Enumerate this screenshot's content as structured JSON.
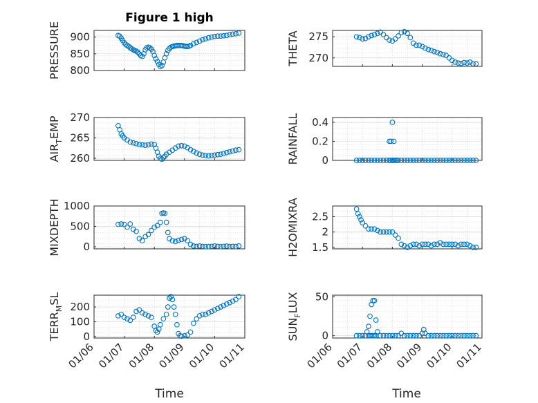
{
  "figure": {
    "title": "Figure 1 high",
    "xlabel": "Time"
  },
  "style": {
    "marker_color": "#0072BD",
    "axis_color": "#262626",
    "grid_color": "#c8c8c8",
    "marker": "open-circle",
    "grid": true,
    "minor_grid": true
  },
  "chart_data": [
    {
      "type": "scatter",
      "ylabel": "PRESSURE",
      "yticks": [
        "800",
        "850",
        "900"
      ],
      "yticks_values": [
        800,
        850,
        900
      ],
      "ylim": [
        800,
        920
      ],
      "xticks": [],
      "x": [
        0.8,
        0.85,
        0.9,
        0.95,
        1.0,
        1.05,
        1.1,
        1.15,
        1.2,
        1.25,
        1.3,
        1.35,
        1.4,
        1.45,
        1.5,
        1.55,
        1.6,
        1.65,
        1.7,
        1.75,
        1.8,
        1.85,
        1.9,
        1.95,
        2.0,
        2.05,
        2.1,
        2.15,
        2.2,
        2.25,
        2.3,
        2.35,
        2.4,
        2.45,
        2.5,
        2.55,
        2.6,
        2.65,
        2.7,
        2.75,
        2.8,
        2.85,
        2.9,
        2.95,
        3.0,
        3.05,
        3.1,
        3.15,
        3.2,
        3.3,
        3.4,
        3.5,
        3.6,
        3.7,
        3.8,
        3.9,
        4.0,
        4.1,
        4.2,
        4.3,
        4.4,
        4.5,
        4.6,
        4.7,
        4.8
      ],
      "y": [
        905,
        903,
        897,
        890,
        883,
        878,
        875,
        872,
        868,
        865,
        862,
        860,
        858,
        855,
        850,
        845,
        842,
        850,
        862,
        868,
        870,
        868,
        864,
        857,
        845,
        835,
        827,
        818,
        812,
        815,
        825,
        838,
        850,
        860,
        866,
        870,
        872,
        873,
        874,
        875,
        875,
        875,
        875,
        874,
        873,
        872,
        872,
        873,
        875,
        880,
        884,
        888,
        892,
        895,
        898,
        900,
        902,
        903,
        903,
        904,
        905,
        907,
        909,
        910,
        912
      ],
      "x_domain": [
        0,
        5
      ]
    },
    {
      "type": "scatter",
      "ylabel": "THETA",
      "yticks": [
        "270",
        "275"
      ],
      "yticks_values": [
        270,
        275
      ],
      "ylim": [
        268,
        276.5
      ],
      "x_domain": [
        0,
        5
      ],
      "x": [
        0.8,
        0.9,
        1.0,
        1.1,
        1.2,
        1.3,
        1.4,
        1.5,
        1.6,
        1.7,
        1.8,
        1.9,
        2.0,
        2.1,
        2.2,
        2.3,
        2.4,
        2.5,
        2.6,
        2.7,
        2.8,
        2.9,
        3.0,
        3.1,
        3.2,
        3.3,
        3.4,
        3.5,
        3.6,
        3.7,
        3.8,
        3.9,
        4.0,
        4.1,
        4.2,
        4.3,
        4.4,
        4.5,
        4.6,
        4.7,
        4.8
      ],
      "y": [
        275,
        274.8,
        274.5,
        274.6,
        275,
        275.3,
        275.5,
        275.8,
        276.1,
        275.5,
        274.8,
        274.2,
        274,
        274.5,
        275.2,
        276,
        276.2,
        275.8,
        274.8,
        273.5,
        273,
        273,
        272.7,
        272.3,
        272,
        271.8,
        271.5,
        271.3,
        271,
        270.8,
        270.6,
        270,
        269.4,
        269,
        268.8,
        268.7,
        268.9,
        268.8,
        269,
        268.6,
        268.6
      ]
    },
    {
      "type": "scatter",
      "ylabel": "AIR_TEMP",
      "ylabel_main": "AIR",
      "ylabel_sub": "T",
      "ylabel_tail": "EMP",
      "yticks": [
        "260",
        "265",
        "270"
      ],
      "yticks_values": [
        260,
        265,
        270
      ],
      "ylim": [
        259.5,
        270
      ],
      "x_domain": [
        0,
        5
      ],
      "x": [
        0.8,
        0.85,
        0.9,
        0.95,
        1.0,
        1.1,
        1.2,
        1.3,
        1.4,
        1.5,
        1.6,
        1.7,
        1.8,
        1.9,
        2.0,
        2.05,
        2.1,
        2.15,
        2.2,
        2.25,
        2.3,
        2.35,
        2.4,
        2.5,
        2.6,
        2.7,
        2.8,
        2.9,
        3.0,
        3.1,
        3.2,
        3.3,
        3.4,
        3.5,
        3.6,
        3.7,
        3.8,
        3.9,
        4.0,
        4.1,
        4.2,
        4.3,
        4.4,
        4.5,
        4.6,
        4.7,
        4.8
      ],
      "y": [
        268,
        267,
        266,
        265.5,
        265,
        264.5,
        264,
        263.8,
        263.6,
        263.4,
        263.3,
        263.2,
        263.3,
        263.5,
        263.4,
        262.5,
        261.5,
        260.5,
        260,
        259.8,
        260.2,
        260.5,
        261,
        261.5,
        262,
        262.5,
        263,
        263.1,
        263,
        262.6,
        262.1,
        261.7,
        261.3,
        261,
        260.8,
        260.7,
        260.6,
        260.7,
        260.8,
        260.9,
        261,
        261.2,
        261.4,
        261.6,
        261.8,
        262,
        262.1
      ]
    },
    {
      "type": "scatter",
      "ylabel": "RAINFALL",
      "yticks": [
        "0",
        "0.2",
        "0.4"
      ],
      "yticks_values": [
        0,
        0.2,
        0.4
      ],
      "ylim": [
        0,
        0.45
      ],
      "x_domain": [
        0,
        5
      ],
      "x": [
        0.8,
        0.9,
        1.0,
        1.1,
        1.2,
        1.3,
        1.4,
        1.5,
        1.6,
        1.7,
        1.8,
        1.9,
        1.95,
        2.0,
        2.05,
        2.1,
        2.15,
        2.2,
        2.3,
        2.4,
        2.5,
        2.6,
        2.7,
        2.8,
        2.9,
        3.0,
        3.1,
        3.2,
        3.3,
        3.4,
        3.5,
        3.6,
        3.7,
        3.8,
        3.9,
        4.0,
        4.1,
        4.2,
        4.3,
        4.4,
        4.5,
        4.6,
        4.7,
        4.8,
        1.9,
        1.95,
        2.0,
        2.05
      ],
      "y": [
        0,
        0,
        0,
        0,
        0,
        0,
        0,
        0,
        0,
        0,
        0,
        0,
        0,
        0,
        0,
        0,
        0,
        0,
        0,
        0,
        0,
        0,
        0,
        0,
        0,
        0,
        0,
        0,
        0,
        0,
        0,
        0,
        0,
        0,
        0,
        0,
        0,
        0,
        0,
        0,
        0,
        0,
        0,
        0,
        0.2,
        0.2,
        0.4,
        0.2
      ]
    },
    {
      "type": "scatter",
      "ylabel": "MIXDEPTH",
      "yticks": [
        "0",
        "500",
        "1000"
      ],
      "yticks_values": [
        0,
        500,
        1000
      ],
      "ylim": [
        -50,
        1000
      ],
      "x_domain": [
        0,
        5
      ],
      "x": [
        0.8,
        0.9,
        1.0,
        1.1,
        1.2,
        1.3,
        1.4,
        1.5,
        1.6,
        1.7,
        1.8,
        1.9,
        2.0,
        2.1,
        2.2,
        2.25,
        2.3,
        2.35,
        2.4,
        2.45,
        2.5,
        2.6,
        2.7,
        2.8,
        2.9,
        3.0,
        3.1,
        3.2,
        3.3,
        3.4,
        3.5,
        3.6,
        3.7,
        3.8,
        3.9,
        4.0,
        4.1,
        4.2,
        4.3,
        4.4,
        4.5,
        4.6,
        4.7,
        4.8
      ],
      "y": [
        550,
        560,
        550,
        480,
        560,
        430,
        380,
        200,
        150,
        250,
        300,
        400,
        480,
        520,
        600,
        820,
        830,
        820,
        600,
        350,
        200,
        150,
        130,
        160,
        180,
        200,
        150,
        60,
        20,
        10,
        20,
        10,
        5,
        5,
        10,
        20,
        10,
        5,
        10,
        15,
        5,
        10,
        5,
        20
      ]
    },
    {
      "type": "scatter",
      "ylabel": "H2OMIXRA",
      "yticks": [
        "1.5",
        "2",
        "2.5"
      ],
      "yticks_values": [
        1.5,
        2,
        2.5
      ],
      "ylim": [
        1.45,
        2.85
      ],
      "x_domain": [
        0,
        5
      ],
      "x": [
        0.8,
        0.85,
        0.9,
        0.95,
        1.0,
        1.1,
        1.2,
        1.3,
        1.4,
        1.5,
        1.6,
        1.7,
        1.8,
        1.9,
        2.0,
        2.1,
        2.2,
        2.3,
        2.4,
        2.5,
        2.6,
        2.7,
        2.8,
        2.9,
        3.0,
        3.1,
        3.2,
        3.3,
        3.4,
        3.5,
        3.6,
        3.7,
        3.8,
        3.9,
        4.0,
        4.1,
        4.2,
        4.3,
        4.4,
        4.5,
        4.6,
        4.7,
        4.8
      ],
      "y": [
        2.75,
        2.6,
        2.5,
        2.4,
        2.3,
        2.2,
        2.1,
        2.1,
        2.1,
        2.05,
        2,
        2,
        2,
        2,
        2,
        1.9,
        1.8,
        1.6,
        1.55,
        1.5,
        1.55,
        1.6,
        1.6,
        1.55,
        1.6,
        1.6,
        1.6,
        1.55,
        1.6,
        1.6,
        1.65,
        1.6,
        1.6,
        1.6,
        1.6,
        1.6,
        1.55,
        1.6,
        1.6,
        1.6,
        1.55,
        1.5,
        1.5
      ]
    },
    {
      "type": "scatter",
      "ylabel": "TERR_MSL",
      "ylabel_main": "TERR",
      "ylabel_sub": "M",
      "ylabel_tail": "SL",
      "yticks": [
        "0",
        "100",
        "200"
      ],
      "yticks_values": [
        0,
        100,
        200
      ],
      "ylim": [
        -10,
        280
      ],
      "x_domain": [
        0,
        5
      ],
      "xticks": [
        "01/06",
        "01/07",
        "01/08",
        "01/09",
        "01/10",
        "01/11"
      ],
      "x": [
        0.8,
        0.9,
        1.0,
        1.1,
        1.2,
        1.3,
        1.4,
        1.5,
        1.6,
        1.7,
        1.8,
        1.9,
        2.0,
        2.05,
        2.1,
        2.15,
        2.2,
        2.3,
        2.4,
        2.45,
        2.5,
        2.55,
        2.6,
        2.65,
        2.7,
        2.75,
        2.8,
        2.85,
        2.9,
        3.0,
        3.1,
        3.2,
        3.3,
        3.4,
        3.5,
        3.6,
        3.7,
        3.8,
        3.9,
        4.0,
        4.1,
        4.2,
        4.3,
        4.4,
        4.5,
        4.6,
        4.7,
        4.8
      ],
      "y": [
        140,
        150,
        130,
        120,
        110,
        130,
        170,
        180,
        160,
        150,
        140,
        130,
        70,
        40,
        30,
        50,
        80,
        120,
        150,
        200,
        260,
        270,
        250,
        200,
        150,
        80,
        20,
        5,
        2,
        5,
        10,
        30,
        90,
        120,
        140,
        150,
        150,
        160,
        170,
        180,
        190,
        200,
        210,
        220,
        230,
        240,
        250,
        270
      ]
    },
    {
      "type": "scatter",
      "ylabel": "SUN_FLUX",
      "ylabel_main": "SUN",
      "ylabel_sub": "F",
      "ylabel_tail": "LUX",
      "yticks": [
        "0",
        "50"
      ],
      "yticks_values": [
        0,
        50
      ],
      "ylim": [
        -3,
        52
      ],
      "x_domain": [
        0,
        5
      ],
      "xticks": [
        "01/06",
        "01/07",
        "01/08",
        "01/09",
        "01/10",
        "01/11"
      ],
      "x": [
        0.8,
        0.9,
        1.0,
        1.1,
        1.15,
        1.2,
        1.25,
        1.3,
        1.35,
        1.4,
        1.45,
        1.5,
        1.6,
        1.7,
        1.8,
        1.9,
        2.0,
        2.1,
        2.2,
        2.3,
        2.4,
        2.5,
        2.6,
        2.7,
        2.8,
        2.9,
        3.0,
        3.05,
        3.1,
        3.2,
        3.3,
        3.4,
        3.5,
        3.6,
        3.7,
        3.8,
        3.9,
        4.0,
        4.1,
        4.2,
        4.3,
        4.4,
        4.5,
        4.6,
        4.7,
        4.8,
        1.2,
        1.25,
        1.3,
        1.35,
        1.4,
        1.45
      ],
      "y": [
        0,
        0,
        0,
        0,
        5,
        12,
        25,
        40,
        45,
        45,
        20,
        5,
        0,
        0,
        0,
        0,
        0,
        0,
        0,
        3,
        0,
        0,
        0,
        0,
        0,
        0,
        3,
        8,
        3,
        0,
        0,
        0,
        0,
        0,
        0,
        0,
        0,
        0,
        0,
        0,
        0,
        0,
        0,
        0,
        0,
        0,
        0,
        0,
        0,
        0,
        0,
        0
      ]
    }
  ]
}
